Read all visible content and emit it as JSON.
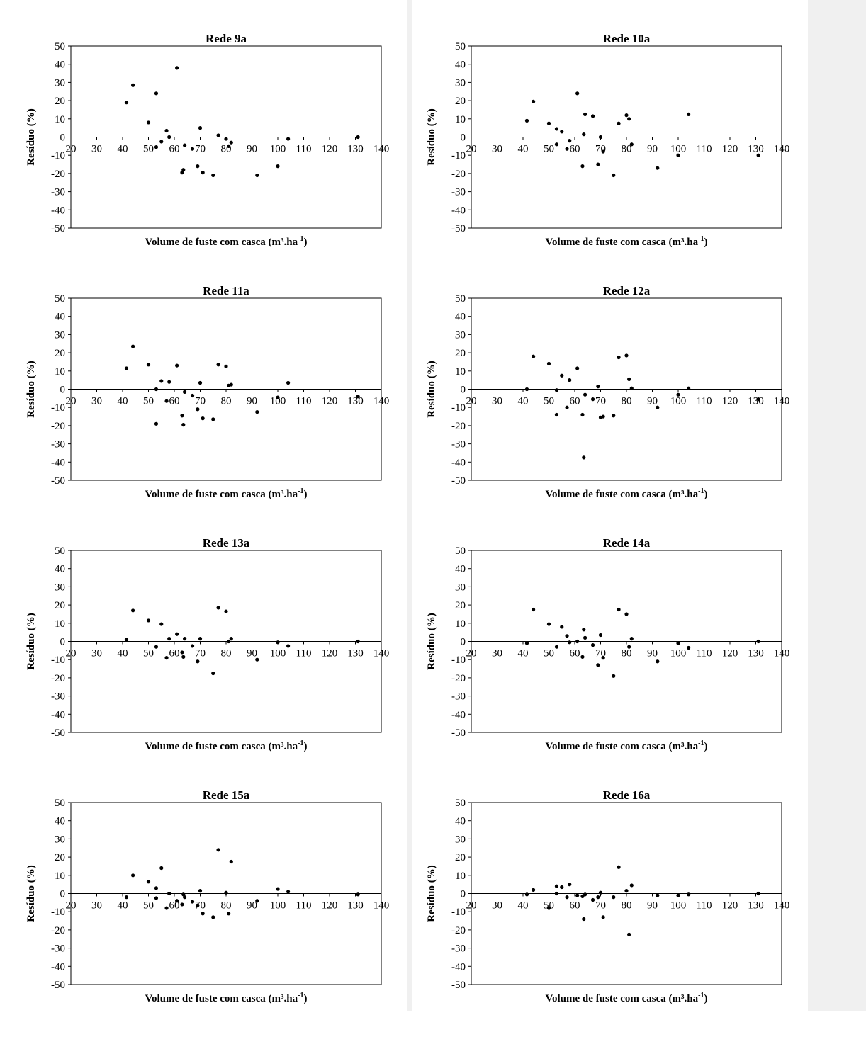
{
  "chart_data": [
    {
      "type": "scatter",
      "title": "Rede 9a",
      "xlabel": "Volume de fuste com casca (m³.ha",
      "xlabel_sup": "-1",
      "xlabel_end": ")",
      "ylabel": "Resíduo (%)",
      "xlim": [
        20,
        140
      ],
      "ylim": [
        -50,
        50
      ],
      "xticks": [
        20,
        30,
        40,
        50,
        60,
        70,
        80,
        90,
        100,
        110,
        120,
        130,
        140
      ],
      "yticks": [
        50,
        40,
        30,
        20,
        10,
        0,
        -10,
        -20,
        -30,
        -40,
        -50
      ],
      "points": [
        [
          41.5,
          19
        ],
        [
          44,
          28.5
        ],
        [
          50,
          8
        ],
        [
          53,
          24
        ],
        [
          53,
          -5.5
        ],
        [
          55,
          -2.5
        ],
        [
          57,
          3.5
        ],
        [
          58,
          0
        ],
        [
          61,
          38
        ],
        [
          63,
          -19.5
        ],
        [
          63.5,
          -18
        ],
        [
          64,
          -4.5
        ],
        [
          67,
          -6.5
        ],
        [
          69,
          -16
        ],
        [
          70,
          5
        ],
        [
          71,
          -19.5
        ],
        [
          75,
          -21
        ],
        [
          77,
          1
        ],
        [
          80,
          -1
        ],
        [
          81,
          -5
        ],
        [
          82,
          -3
        ],
        [
          92,
          -21
        ],
        [
          100,
          -16
        ],
        [
          104,
          -1
        ],
        [
          131,
          0
        ]
      ]
    },
    {
      "type": "scatter",
      "title": "Rede 10a",
      "xlabel": "Volume de fuste com casca (m³.ha",
      "xlabel_sup": "-1",
      "xlabel_end": ")",
      "ylabel": "Resíduo (%)",
      "xlim": [
        20,
        140
      ],
      "ylim": [
        -50,
        50
      ],
      "xticks": [
        20,
        30,
        40,
        50,
        60,
        70,
        80,
        90,
        100,
        110,
        120,
        130,
        140
      ],
      "yticks": [
        50,
        40,
        30,
        20,
        10,
        0,
        -10,
        -20,
        -30,
        -40,
        -50
      ],
      "points": [
        [
          41.5,
          9
        ],
        [
          44,
          19.5
        ],
        [
          50,
          7.5
        ],
        [
          53,
          4.5
        ],
        [
          53,
          -4
        ],
        [
          55,
          3
        ],
        [
          57,
          -6.5
        ],
        [
          58,
          -2
        ],
        [
          61,
          24
        ],
        [
          63,
          -16
        ],
        [
          63.5,
          1.5
        ],
        [
          64,
          12.5
        ],
        [
          67,
          11.5
        ],
        [
          69,
          -15
        ],
        [
          70,
          0
        ],
        [
          71,
          -8
        ],
        [
          75,
          -21
        ],
        [
          77,
          7.5
        ],
        [
          80,
          12
        ],
        [
          81,
          10
        ],
        [
          82,
          -4
        ],
        [
          92,
          -17
        ],
        [
          100,
          -10
        ],
        [
          104,
          12.5
        ],
        [
          131,
          -10
        ]
      ]
    },
    {
      "type": "scatter",
      "title": "Rede 11a",
      "xlabel": "Volume de fuste com casca (m³.ha",
      "xlabel_sup": "-1",
      "xlabel_end": ")",
      "ylabel": "Resíduo (%)",
      "xlim": [
        20,
        140
      ],
      "ylim": [
        -50,
        50
      ],
      "xticks": [
        20,
        30,
        40,
        50,
        60,
        70,
        80,
        90,
        100,
        110,
        120,
        130,
        140
      ],
      "yticks": [
        50,
        40,
        30,
        20,
        10,
        0,
        -10,
        -20,
        -30,
        -40,
        -50
      ],
      "points": [
        [
          41.5,
          11.5
        ],
        [
          44,
          23.5
        ],
        [
          50,
          13.5
        ],
        [
          53,
          0
        ],
        [
          53,
          -19
        ],
        [
          55,
          4.5
        ],
        [
          57,
          -6.5
        ],
        [
          58,
          4
        ],
        [
          61,
          13
        ],
        [
          63,
          -14.5
        ],
        [
          63.5,
          -19.5
        ],
        [
          64,
          -1.5
        ],
        [
          67,
          -3.5
        ],
        [
          69,
          -11
        ],
        [
          70,
          3.5
        ],
        [
          71,
          -16
        ],
        [
          75,
          -16.5
        ],
        [
          77,
          13.5
        ],
        [
          80,
          12.5
        ],
        [
          81,
          2
        ],
        [
          82,
          2.5
        ],
        [
          92,
          -12.5
        ],
        [
          100,
          -4.5
        ],
        [
          104,
          3.5
        ],
        [
          131,
          -4
        ]
      ]
    },
    {
      "type": "scatter",
      "title": "Rede 12a",
      "xlabel": "Volume de fuste com casca (m³.ha",
      "xlabel_sup": "-1",
      "xlabel_end": ")",
      "ylabel": "Resíduo (%)",
      "xlim": [
        20,
        140
      ],
      "ylim": [
        -50,
        50
      ],
      "xticks": [
        20,
        30,
        40,
        50,
        60,
        70,
        80,
        90,
        100,
        110,
        120,
        130,
        140
      ],
      "yticks": [
        50,
        40,
        30,
        20,
        10,
        0,
        -10,
        -20,
        -30,
        -40,
        -50
      ],
      "points": [
        [
          41.5,
          0
        ],
        [
          44,
          18
        ],
        [
          50,
          14
        ],
        [
          53,
          -0.5
        ],
        [
          53,
          -14
        ],
        [
          55,
          7.5
        ],
        [
          57,
          -10
        ],
        [
          58,
          5
        ],
        [
          61,
          11.5
        ],
        [
          63,
          -14
        ],
        [
          63.5,
          -37.5
        ],
        [
          64,
          -3
        ],
        [
          67,
          -5.5
        ],
        [
          69,
          1.5
        ],
        [
          70,
          -15.5
        ],
        [
          71,
          -15
        ],
        [
          75,
          -14.5
        ],
        [
          77,
          17.5
        ],
        [
          80,
          18.5
        ],
        [
          81,
          5.5
        ],
        [
          82,
          0.5
        ],
        [
          92,
          -10
        ],
        [
          100,
          -3
        ],
        [
          104,
          0.5
        ],
        [
          131,
          -5.5
        ]
      ]
    },
    {
      "type": "scatter",
      "title": "Rede 13a",
      "xlabel": "Volume de fuste com casca (m³.ha",
      "xlabel_sup": "-1",
      "xlabel_end": ")",
      "ylabel": "Resíduo (%)",
      "xlim": [
        20,
        140
      ],
      "ylim": [
        -50,
        50
      ],
      "xticks": [
        20,
        30,
        40,
        50,
        60,
        70,
        80,
        90,
        100,
        110,
        120,
        130,
        140
      ],
      "yticks": [
        50,
        40,
        30,
        20,
        10,
        0,
        -10,
        -20,
        -30,
        -40,
        -50
      ],
      "points": [
        [
          41.5,
          1
        ],
        [
          44,
          17
        ],
        [
          50,
          11.5
        ],
        [
          53,
          -3
        ],
        [
          55,
          9.5
        ],
        [
          57,
          -9
        ],
        [
          58,
          1.5
        ],
        [
          61,
          4
        ],
        [
          63,
          -6
        ],
        [
          63.5,
          -8.5
        ],
        [
          64,
          1.5
        ],
        [
          67,
          -2.5
        ],
        [
          69,
          -11
        ],
        [
          70,
          1.5
        ],
        [
          75,
          -17.5
        ],
        [
          77,
          18.5
        ],
        [
          80,
          16.5
        ],
        [
          81,
          0
        ],
        [
          82,
          1.5
        ],
        [
          92,
          -10
        ],
        [
          100,
          -0.5
        ],
        [
          104,
          -2.5
        ],
        [
          131,
          0
        ]
      ]
    },
    {
      "type": "scatter",
      "title": "Rede 14a",
      "xlabel": "Volume de fuste com casca (m³.ha",
      "xlabel_sup": "-1",
      "xlabel_end": ")",
      "ylabel": "Resíduo (%)",
      "xlim": [
        20,
        140
      ],
      "ylim": [
        -50,
        50
      ],
      "xticks": [
        20,
        30,
        40,
        50,
        60,
        70,
        80,
        90,
        100,
        110,
        120,
        130,
        140
      ],
      "yticks": [
        50,
        40,
        30,
        20,
        10,
        0,
        -10,
        -20,
        -30,
        -40,
        -50
      ],
      "points": [
        [
          41.5,
          -1
        ],
        [
          44,
          17.5
        ],
        [
          50,
          9.5
        ],
        [
          53,
          -3
        ],
        [
          55,
          8
        ],
        [
          57,
          3
        ],
        [
          58,
          -0.5
        ],
        [
          61,
          0
        ],
        [
          63,
          -8.5
        ],
        [
          63.5,
          6.5
        ],
        [
          64,
          2
        ],
        [
          67,
          -2
        ],
        [
          69,
          -13
        ],
        [
          70,
          3.5
        ],
        [
          71,
          -9
        ],
        [
          75,
          -19
        ],
        [
          77,
          17.5
        ],
        [
          80,
          15
        ],
        [
          81,
          -3
        ],
        [
          82,
          1.5
        ],
        [
          92,
          -11
        ],
        [
          100,
          -1
        ],
        [
          104,
          -3.5
        ],
        [
          131,
          0
        ]
      ]
    },
    {
      "type": "scatter",
      "title": "Rede 15a",
      "xlabel": "Volume de fuste com casca (m³.ha",
      "xlabel_sup": "-1",
      "xlabel_end": ")",
      "ylabel": "Resíduo (%)",
      "xlim": [
        20,
        140
      ],
      "ylim": [
        -50,
        50
      ],
      "xticks": [
        20,
        30,
        40,
        50,
        60,
        70,
        80,
        90,
        100,
        110,
        120,
        130,
        140
      ],
      "yticks": [
        50,
        40,
        30,
        20,
        10,
        0,
        -10,
        -20,
        -30,
        -40,
        -50
      ],
      "points": [
        [
          41.5,
          -2
        ],
        [
          44,
          10
        ],
        [
          50,
          6.5
        ],
        [
          53,
          3
        ],
        [
          53,
          -2.5
        ],
        [
          55,
          14
        ],
        [
          57,
          -8
        ],
        [
          58,
          0
        ],
        [
          61,
          -4
        ],
        [
          63,
          -6
        ],
        [
          63.5,
          -0.5
        ],
        [
          64,
          -2
        ],
        [
          67,
          -4.5
        ],
        [
          69,
          -6.5
        ],
        [
          70,
          1.5
        ],
        [
          71,
          -11
        ],
        [
          75,
          -13
        ],
        [
          77,
          24
        ],
        [
          80,
          0.5
        ],
        [
          81,
          -11
        ],
        [
          82,
          17.5
        ],
        [
          92,
          -4
        ],
        [
          100,
          2.5
        ],
        [
          104,
          1
        ],
        [
          131,
          -0.5
        ]
      ]
    },
    {
      "type": "scatter",
      "title": "Rede 16a",
      "xlabel": "Volume de fuste com casca (m³.ha",
      "xlabel_sup": "-1",
      "xlabel_end": ")",
      "ylabel": "Resíduo (%)",
      "xlim": [
        20,
        140
      ],
      "ylim": [
        -50,
        50
      ],
      "xticks": [
        20,
        30,
        40,
        50,
        60,
        70,
        80,
        90,
        100,
        110,
        120,
        130,
        140
      ],
      "yticks": [
        50,
        40,
        30,
        20,
        10,
        0,
        -10,
        -20,
        -30,
        -40,
        -50
      ],
      "points": [
        [
          41.5,
          -0.5
        ],
        [
          44,
          2
        ],
        [
          50,
          -8
        ],
        [
          53,
          0
        ],
        [
          53,
          4
        ],
        [
          55,
          3.5
        ],
        [
          57,
          -2
        ],
        [
          58,
          5
        ],
        [
          61,
          -1
        ],
        [
          63,
          -1.5
        ],
        [
          63.5,
          -14
        ],
        [
          64,
          -0.5
        ],
        [
          67,
          -3.5
        ],
        [
          69,
          -2
        ],
        [
          70,
          0.5
        ],
        [
          71,
          -13
        ],
        [
          75,
          -2
        ],
        [
          77,
          14.5
        ],
        [
          80,
          1.5
        ],
        [
          81,
          -22.5
        ],
        [
          82,
          4.5
        ],
        [
          92,
          -1
        ],
        [
          100,
          -1
        ],
        [
          104,
          -0.5
        ],
        [
          131,
          0
        ]
      ]
    }
  ]
}
